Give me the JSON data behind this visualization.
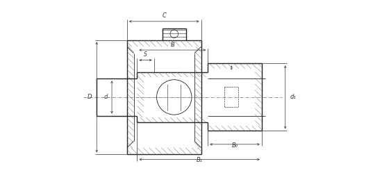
{
  "bg_color": "#ffffff",
  "line_color": "#222222",
  "hatch_color": "#777777",
  "dim_color": "#333333",
  "fig_width": 5.5,
  "fig_height": 2.75,
  "labels": {
    "C": "C",
    "B": "B",
    "S": "S",
    "D": "D",
    "d": "d",
    "d1": "d₁",
    "B0": "B₀",
    "B1": "B₁"
  }
}
